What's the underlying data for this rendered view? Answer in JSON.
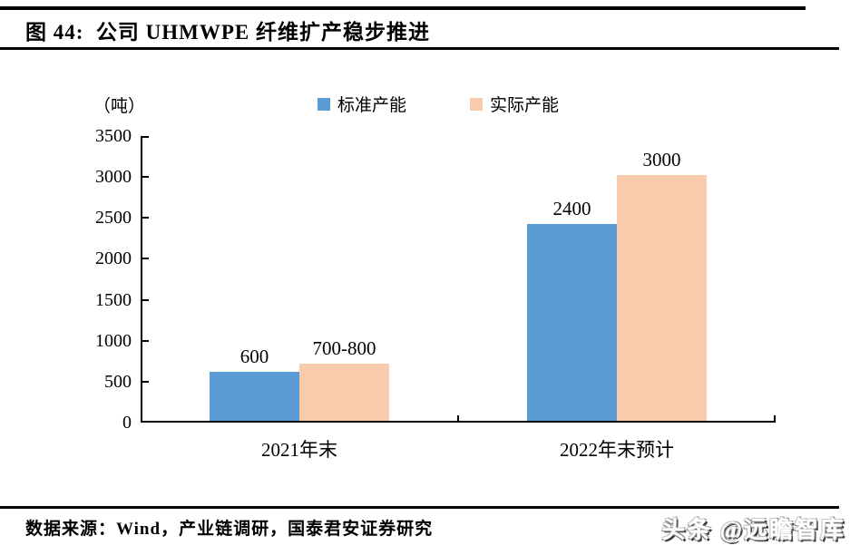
{
  "header": {
    "title": "图 44:  公司 UHMWPE 纤维扩产稳步推进"
  },
  "footer": {
    "source": "数据来源：Wind，产业链调研，国泰君安证券研究",
    "watermark": "头条 @远瞻智库"
  },
  "colors": {
    "series_standard": "#5B9BD5",
    "series_actual": "#F8CBAD",
    "axis": "#000000"
  },
  "chart_data": {
    "type": "bar",
    "title": "图 44: 公司 UHMWPE 纤维扩产稳步推进",
    "unit": "（吨）",
    "xlabel": "",
    "ylabel": "（吨）",
    "categories": [
      "2021年末",
      "2022年末预计"
    ],
    "series": [
      {
        "name": "标准产能",
        "color": "#5B9BD5",
        "values": [
          600,
          2400
        ],
        "data_labels": [
          "600",
          "2400"
        ]
      },
      {
        "name": "实际产能",
        "color": "#F8CBAD",
        "values": [
          700,
          3000
        ],
        "data_labels": [
          "700-800",
          "3000"
        ]
      }
    ],
    "ylim": [
      0,
      3500
    ],
    "yticks": [
      0,
      500,
      1000,
      1500,
      2000,
      2500,
      3000,
      3500
    ],
    "legend_position": "top",
    "grid": false
  }
}
